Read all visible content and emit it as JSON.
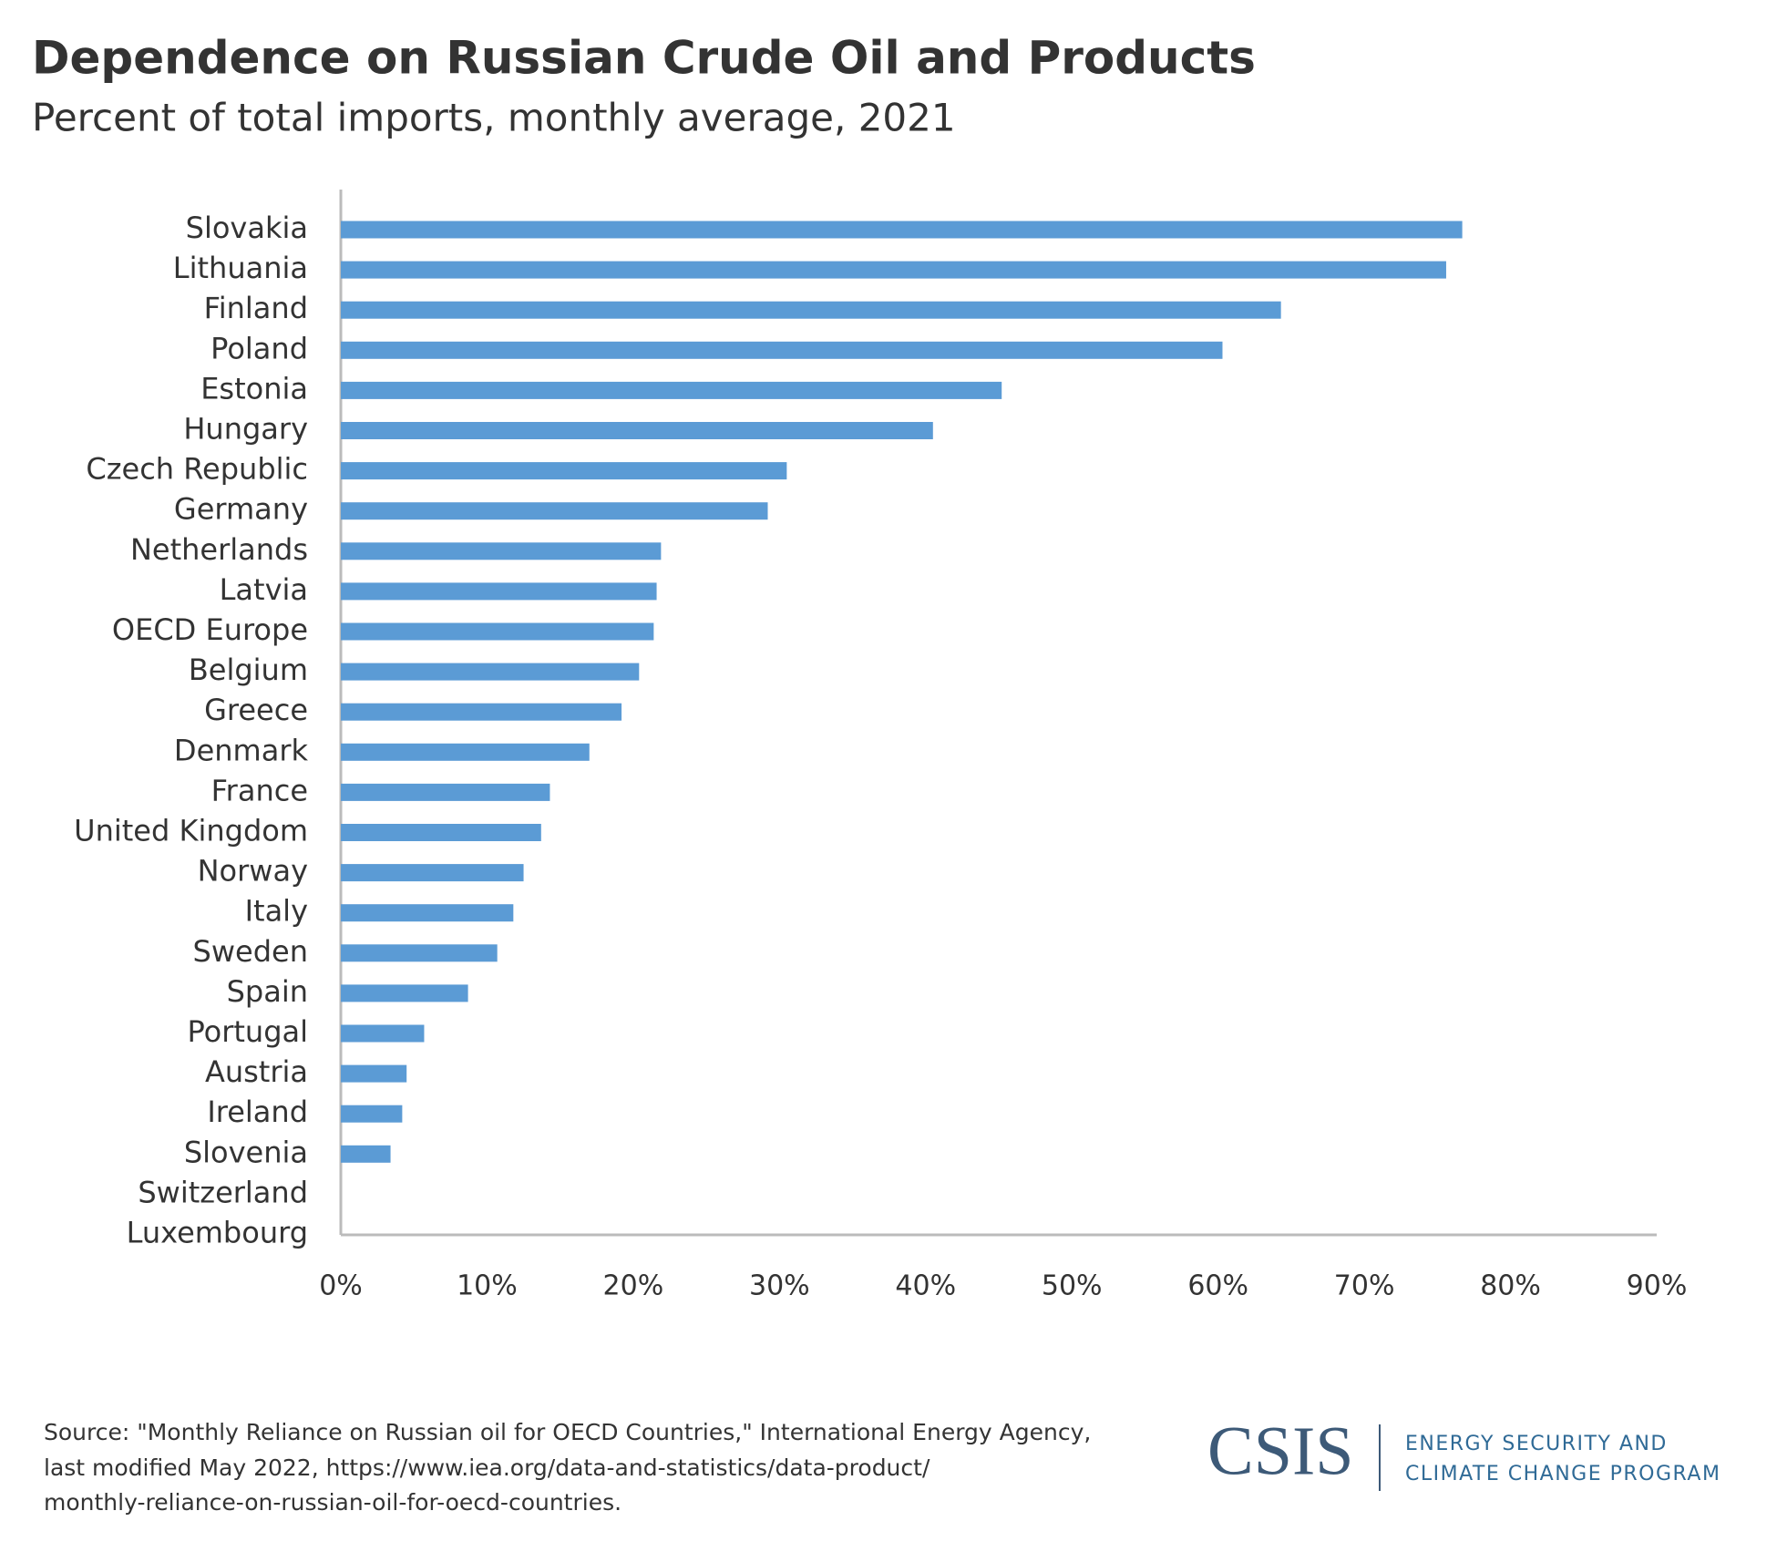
{
  "chart_data": {
    "type": "bar",
    "orientation": "horizontal",
    "title": "Dependence on Russian Crude Oil and Products",
    "subtitle": "Percent of total imports, monthly average, 2021",
    "categories": [
      "Slovakia",
      "Lithuania",
      "Finland",
      "Poland",
      "Estonia",
      "Hungary",
      "Czech Republic",
      "Germany",
      "Netherlands",
      "Latvia",
      "OECD Europe",
      "Belgium",
      "Greece",
      "Denmark",
      "France",
      "United Kingdom",
      "Norway",
      "Italy",
      "Sweden",
      "Spain",
      "Portugal",
      "Austria",
      "Ireland",
      "Slovenia",
      "Switzerland",
      "Luxembourg"
    ],
    "values": [
      76.7,
      75.6,
      64.3,
      60.3,
      45.2,
      40.5,
      30.5,
      29.2,
      21.9,
      21.6,
      21.4,
      20.4,
      19.2,
      17.0,
      14.3,
      13.7,
      12.5,
      11.8,
      10.7,
      8.7,
      5.7,
      4.5,
      4.2,
      3.4,
      0,
      0
    ],
    "color": "#5b9bd5",
    "xlim": [
      0,
      90
    ],
    "xticks": [
      {
        "value": 0,
        "label": "0%"
      },
      {
        "value": 10,
        "label": "10%"
      },
      {
        "value": 20,
        "label": "20%"
      },
      {
        "value": 30,
        "label": "30%"
      },
      {
        "value": 40,
        "label": "40%"
      },
      {
        "value": 50,
        "label": "50%"
      },
      {
        "value": 60,
        "label": "60%"
      },
      {
        "value": 70,
        "label": "70%"
      },
      {
        "value": 80,
        "label": "80%"
      },
      {
        "value": 90,
        "label": "90%"
      }
    ],
    "grid": false
  },
  "footer": {
    "source": [
      "Source: \"Monthly Reliance on Russian oil for OECD Countries,\" International Energy Agency,",
      "last modified May 2022, https://www.iea.org/data-and-statistics/data-product/",
      "monthly-reliance-on-russian-oil-for-oecd-countries."
    ],
    "logo": "CSIS",
    "program": [
      "ENERGY SECURITY AND",
      "CLIMATE CHANGE PROGRAM"
    ]
  }
}
